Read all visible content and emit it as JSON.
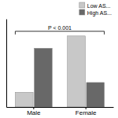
{
  "chart_data": {
    "type": "bar",
    "categories": [
      "Male",
      "Female"
    ],
    "series": [
      {
        "name": "Low AS...",
        "color": "#c8c8c8",
        "values": [
          12,
          58
        ]
      },
      {
        "name": "High AS...",
        "color": "#686868",
        "values": [
          48,
          20
        ]
      }
    ],
    "ylim": [
      0,
      72
    ],
    "yticks": [],
    "tick_labels": "x",
    "legend": "upper right",
    "annotations": [
      "P < 0.001"
    ]
  }
}
